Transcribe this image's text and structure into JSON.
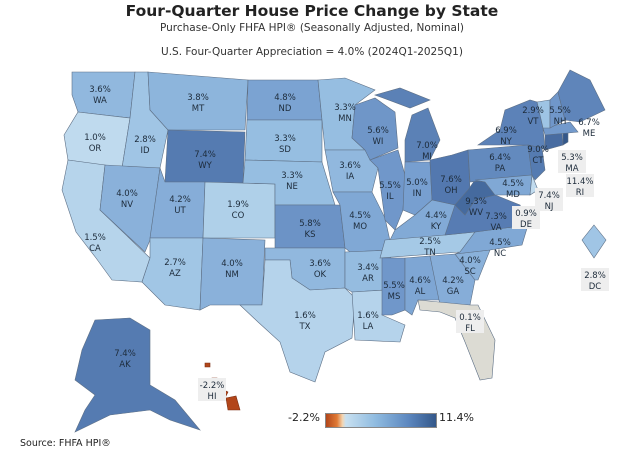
{
  "title": "Four-Quarter House Price Change by State",
  "subtitle": "Purchase-Only FHFA HPI® (Seasonally Adjusted, Nominal)",
  "summary": "U.S. Four-Quarter Appreciation = 4.0% (2024Q1-2025Q1)",
  "legend": {
    "min": "-2.2%",
    "max": "11.4%",
    "min_value": -2.2,
    "max_value": 11.4,
    "low_color": "#b2461a",
    "zero_color": "#dcdbd3",
    "high_color": "#34588a"
  },
  "source": "Source:  FHFA HPI®",
  "states": [
    {
      "abbr": "WA",
      "value": 3.6,
      "label": "3.6%"
    },
    {
      "abbr": "OR",
      "value": 1.0,
      "label": "1.0%"
    },
    {
      "abbr": "CA",
      "value": 1.5,
      "label": "1.5%"
    },
    {
      "abbr": "ID",
      "value": 2.8,
      "label": "2.8%"
    },
    {
      "abbr": "NV",
      "value": 4.0,
      "label": "4.0%"
    },
    {
      "abbr": "MT",
      "value": 3.8,
      "label": "3.8%"
    },
    {
      "abbr": "WY",
      "value": 7.4,
      "label": "7.4%"
    },
    {
      "abbr": "UT",
      "value": 4.2,
      "label": "4.2%"
    },
    {
      "abbr": "AZ",
      "value": 2.7,
      "label": "2.7%"
    },
    {
      "abbr": "CO",
      "value": 1.9,
      "label": "1.9%"
    },
    {
      "abbr": "NM",
      "value": 4.0,
      "label": "4.0%"
    },
    {
      "abbr": "ND",
      "value": 4.8,
      "label": "4.8%"
    },
    {
      "abbr": "SD",
      "value": 3.3,
      "label": "3.3%"
    },
    {
      "abbr": "NE",
      "value": 3.3,
      "label": "3.3%"
    },
    {
      "abbr": "KS",
      "value": 5.8,
      "label": "5.8%"
    },
    {
      "abbr": "OK",
      "value": 3.6,
      "label": "3.6%"
    },
    {
      "abbr": "TX",
      "value": 1.6,
      "label": "1.6%"
    },
    {
      "abbr": "MN",
      "value": 3.3,
      "label": "3.3%"
    },
    {
      "abbr": "IA",
      "value": 3.6,
      "label": "3.6%"
    },
    {
      "abbr": "MO",
      "value": 4.5,
      "label": "4.5%"
    },
    {
      "abbr": "AR",
      "value": 3.4,
      "label": "3.4%"
    },
    {
      "abbr": "LA",
      "value": 1.6,
      "label": "1.6%"
    },
    {
      "abbr": "WI",
      "value": 5.6,
      "label": "5.6%"
    },
    {
      "abbr": "IL",
      "value": 5.5,
      "label": "5.5%"
    },
    {
      "abbr": "MI",
      "value": 7.0,
      "label": "7.0%"
    },
    {
      "abbr": "IN",
      "value": 5.0,
      "label": "5.0%"
    },
    {
      "abbr": "OH",
      "value": 7.6,
      "label": "7.6%"
    },
    {
      "abbr": "KY",
      "value": 4.4,
      "label": "4.4%"
    },
    {
      "abbr": "TN",
      "value": 2.5,
      "label": "2.5%"
    },
    {
      "abbr": "MS",
      "value": 5.5,
      "label": "5.5%"
    },
    {
      "abbr": "AL",
      "value": 4.6,
      "label": "4.6%"
    },
    {
      "abbr": "GA",
      "value": 4.2,
      "label": "4.2%"
    },
    {
      "abbr": "FL",
      "value": 0.1,
      "label": "0.1%"
    },
    {
      "abbr": "SC",
      "value": 4.0,
      "label": "4.0%"
    },
    {
      "abbr": "NC",
      "value": 4.5,
      "label": "4.5%"
    },
    {
      "abbr": "VA",
      "value": 7.3,
      "label": "7.3%"
    },
    {
      "abbr": "WV",
      "value": 9.3,
      "label": "9.3%"
    },
    {
      "abbr": "PA",
      "value": 6.4,
      "label": "6.4%"
    },
    {
      "abbr": "NY",
      "value": 6.9,
      "label": "6.9%"
    },
    {
      "abbr": "MD",
      "value": 4.5,
      "label": "4.5%"
    },
    {
      "abbr": "DE",
      "value": 0.9,
      "label": "0.9%"
    },
    {
      "abbr": "NJ",
      "value": 7.4,
      "label": "7.4%"
    },
    {
      "abbr": "CT",
      "value": 9.0,
      "label": "9.0%"
    },
    {
      "abbr": "RI",
      "value": 11.4,
      "label": "11.4%"
    },
    {
      "abbr": "MA",
      "value": 5.3,
      "label": "5.3%"
    },
    {
      "abbr": "VT",
      "value": 2.9,
      "label": "2.9%"
    },
    {
      "abbr": "NH",
      "value": 5.5,
      "label": "5.5%"
    },
    {
      "abbr": "ME",
      "value": 6.7,
      "label": "6.7%"
    },
    {
      "abbr": "DC",
      "value": 2.8,
      "label": "2.8%"
    },
    {
      "abbr": "AK",
      "value": 7.4,
      "label": "7.4%"
    },
    {
      "abbr": "HI",
      "value": -2.2,
      "label": "-2.2%"
    }
  ]
}
